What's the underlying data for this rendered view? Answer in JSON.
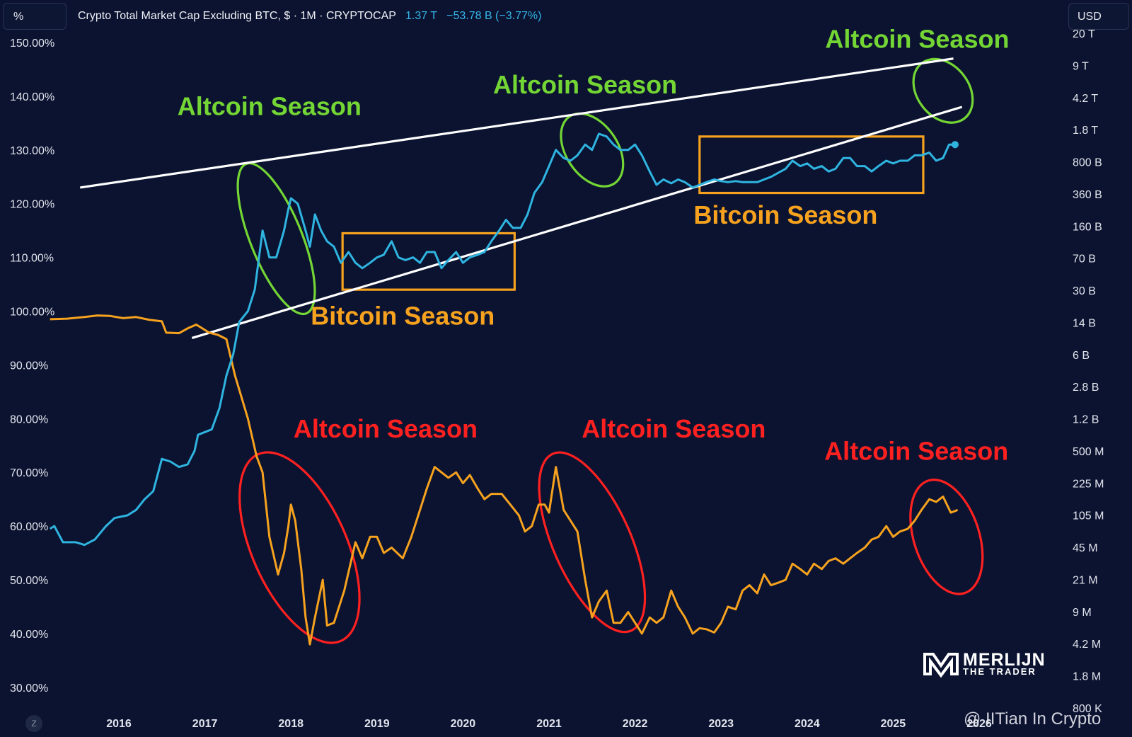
{
  "header": {
    "left_unit": "%",
    "title": "Crypto Total Market Cap Excluding BTC, $ · 1M · CRYPTOCAP",
    "stat_value": "1.37 T",
    "stat_change": "−53.78 B (−3.77%)",
    "right_currency": "USD"
  },
  "colors": {
    "background": "#0b1331",
    "total2_line": "#2fb4e0",
    "dominance_line": "#f6a21e",
    "altcoin_green": "#74d634",
    "altcoin_red": "#ff2020",
    "bitcoin_orange": "#f6a21e",
    "trendline": "#ffffff"
  },
  "icons": {
    "chart_logo": "tradingview-logo-icon",
    "brand": "merlijn-logo-icon"
  },
  "logo": {
    "line1": "MERLIJN",
    "line2": "THE TRADER"
  },
  "watermark": "@ IITian In Crypto",
  "z_badge": "Z",
  "chart_data": {
    "type": "line",
    "title": "Crypto Total Market Cap Excluding BTC, $ · 1M · CRYPTOCAP",
    "xlabel": "",
    "ylabel": "",
    "x_ticks": [
      "2016",
      "2017",
      "2018",
      "2019",
      "2020",
      "2021",
      "2022",
      "2023",
      "2024",
      "2025",
      "2026"
    ],
    "left_axis": {
      "unit": "%",
      "ticks": [
        "150.00%",
        "140.00%",
        "130.00%",
        "120.00%",
        "110.00%",
        "100.00%",
        "90.00%",
        "80.00%",
        "70.00%",
        "60.00%",
        "50.00%",
        "40.00%",
        "30.00%"
      ],
      "ylim": [
        27,
        152
      ]
    },
    "right_axis": {
      "unit": "USD",
      "scale": "log",
      "ticks": [
        "20 T",
        "9 T",
        "4.2 T",
        "1.8 T",
        "800 B",
        "360 B",
        "160 B",
        "70 B",
        "30 B",
        "14 B",
        "6 B",
        "2.8 B",
        "1.2 B",
        "500 M",
        "225 M",
        "105 M",
        "45 M",
        "21 M",
        "9 M",
        "4.2 M",
        "1.8 M",
        "800 K"
      ]
    },
    "grid": false,
    "series": [
      {
        "axis": "left",
        "points": [
          [
            2015.2,
            98.5
          ],
          [
            2015.4,
            98.6
          ],
          [
            2015.6,
            98.9
          ],
          [
            2015.75,
            99.2
          ],
          [
            2015.9,
            99.1
          ],
          [
            2016.05,
            98.7
          ],
          [
            2016.2,
            98.9
          ],
          [
            2016.35,
            98.4
          ],
          [
            2016.5,
            98.1
          ],
          [
            2016.55,
            96
          ],
          [
            2016.7,
            95.9
          ],
          [
            2016.8,
            96.8
          ],
          [
            2016.9,
            97.5
          ],
          [
            2017.05,
            96
          ],
          [
            2017.15,
            95.6
          ],
          [
            2017.25,
            94.8
          ],
          [
            2017.35,
            88
          ],
          [
            2017.5,
            80
          ],
          [
            2017.6,
            73
          ],
          [
            2017.67,
            70
          ],
          [
            2017.75,
            58
          ],
          [
            2017.85,
            51
          ],
          [
            2017.92,
            55
          ],
          [
            2017.97,
            60
          ],
          [
            2018.0,
            64
          ],
          [
            2018.05,
            61
          ],
          [
            2018.12,
            52
          ],
          [
            2018.17,
            43
          ],
          [
            2018.22,
            38
          ],
          [
            2018.28,
            43
          ],
          [
            2018.37,
            50
          ],
          [
            2018.42,
            41.5
          ],
          [
            2018.5,
            42
          ],
          [
            2018.62,
            48
          ],
          [
            2018.75,
            57
          ],
          [
            2018.83,
            54
          ],
          [
            2018.92,
            58
          ],
          [
            2019.0,
            58
          ],
          [
            2019.08,
            55
          ],
          [
            2019.17,
            56
          ],
          [
            2019.3,
            54
          ],
          [
            2019.4,
            58
          ],
          [
            2019.5,
            63
          ],
          [
            2019.58,
            67
          ],
          [
            2019.67,
            71
          ],
          [
            2019.75,
            70
          ],
          [
            2019.83,
            69
          ],
          [
            2019.92,
            70
          ],
          [
            2020.0,
            68
          ],
          [
            2020.08,
            69.5
          ],
          [
            2020.17,
            67
          ],
          [
            2020.25,
            65
          ],
          [
            2020.33,
            66
          ],
          [
            2020.45,
            66
          ],
          [
            2020.55,
            64
          ],
          [
            2020.65,
            62
          ],
          [
            2020.72,
            59
          ],
          [
            2020.8,
            60
          ],
          [
            2020.88,
            64
          ],
          [
            2020.95,
            64
          ],
          [
            2021.0,
            62.5
          ],
          [
            2021.08,
            71
          ],
          [
            2021.17,
            63
          ],
          [
            2021.25,
            61
          ],
          [
            2021.33,
            59
          ],
          [
            2021.42,
            50
          ],
          [
            2021.5,
            43
          ],
          [
            2021.58,
            46
          ],
          [
            2021.67,
            48
          ],
          [
            2021.75,
            42
          ],
          [
            2021.83,
            42
          ],
          [
            2021.92,
            44
          ],
          [
            2022.0,
            42
          ],
          [
            2022.08,
            40
          ],
          [
            2022.17,
            43
          ],
          [
            2022.25,
            42
          ],
          [
            2022.33,
            43
          ],
          [
            2022.42,
            48
          ],
          [
            2022.5,
            45
          ],
          [
            2022.58,
            43
          ],
          [
            2022.67,
            40
          ],
          [
            2022.75,
            41
          ],
          [
            2022.83,
            40.8
          ],
          [
            2022.92,
            40.2
          ],
          [
            2023.0,
            42
          ],
          [
            2023.08,
            45
          ],
          [
            2023.17,
            44.5
          ],
          [
            2023.25,
            48
          ],
          [
            2023.33,
            49
          ],
          [
            2023.42,
            47.5
          ],
          [
            2023.5,
            51
          ],
          [
            2023.58,
            49
          ],
          [
            2023.67,
            49.5
          ],
          [
            2023.75,
            50
          ],
          [
            2023.83,
            53
          ],
          [
            2023.92,
            52
          ],
          [
            2024.0,
            51
          ],
          [
            2024.08,
            53
          ],
          [
            2024.17,
            52
          ],
          [
            2024.25,
            53.5
          ],
          [
            2024.33,
            54
          ],
          [
            2024.42,
            53
          ],
          [
            2024.5,
            54
          ],
          [
            2024.58,
            55
          ],
          [
            2024.67,
            56
          ],
          [
            2024.75,
            57.5
          ],
          [
            2024.83,
            58
          ],
          [
            2024.92,
            60
          ],
          [
            2025.0,
            58
          ],
          [
            2025.08,
            59
          ],
          [
            2025.17,
            59.5
          ],
          [
            2025.25,
            61
          ],
          [
            2025.33,
            63
          ],
          [
            2025.42,
            65
          ],
          [
            2025.5,
            64.5
          ],
          [
            2025.58,
            65.5
          ],
          [
            2025.67,
            62.5
          ],
          [
            2025.75,
            63
          ]
        ]
      },
      {
        "axis": "left",
        "points": [
          [
            2015.2,
            59.5
          ],
          [
            2015.25,
            60
          ],
          [
            2015.35,
            57
          ],
          [
            2015.5,
            57
          ],
          [
            2015.6,
            56.5
          ],
          [
            2015.72,
            57.5
          ],
          [
            2015.85,
            60
          ],
          [
            2015.95,
            61.5
          ],
          [
            2016.1,
            62
          ],
          [
            2016.2,
            63
          ],
          [
            2016.3,
            65
          ],
          [
            2016.4,
            66.5
          ],
          [
            2016.5,
            72.5
          ],
          [
            2016.6,
            72
          ],
          [
            2016.7,
            71
          ],
          [
            2016.8,
            71.5
          ],
          [
            2016.88,
            74
          ],
          [
            2016.92,
            77
          ],
          [
            2017.0,
            77.5
          ],
          [
            2017.08,
            78
          ],
          [
            2017.17,
            82
          ],
          [
            2017.25,
            88
          ],
          [
            2017.33,
            92
          ],
          [
            2017.4,
            98
          ],
          [
            2017.5,
            100
          ],
          [
            2017.58,
            104
          ],
          [
            2017.67,
            115
          ],
          [
            2017.75,
            110
          ],
          [
            2017.83,
            110
          ],
          [
            2017.92,
            115
          ],
          [
            2017.97,
            119
          ],
          [
            2018.0,
            121
          ],
          [
            2018.08,
            120
          ],
          [
            2018.17,
            115
          ],
          [
            2018.22,
            112
          ],
          [
            2018.28,
            118
          ],
          [
            2018.35,
            115
          ],
          [
            2018.42,
            113
          ],
          [
            2018.5,
            112
          ],
          [
            2018.58,
            109
          ],
          [
            2018.67,
            111
          ],
          [
            2018.75,
            109
          ],
          [
            2018.83,
            108
          ],
          [
            2018.92,
            109
          ],
          [
            2019.0,
            110
          ],
          [
            2019.08,
            110.5
          ],
          [
            2019.17,
            113
          ],
          [
            2019.25,
            110
          ],
          [
            2019.33,
            109.5
          ],
          [
            2019.42,
            110
          ],
          [
            2019.5,
            109
          ],
          [
            2019.58,
            111
          ],
          [
            2019.67,
            111
          ],
          [
            2019.75,
            108
          ],
          [
            2019.83,
            109.5
          ],
          [
            2019.92,
            111
          ],
          [
            2020.0,
            109
          ],
          [
            2020.08,
            110
          ],
          [
            2020.17,
            110.5
          ],
          [
            2020.25,
            111
          ],
          [
            2020.33,
            113
          ],
          [
            2020.42,
            115
          ],
          [
            2020.5,
            117
          ],
          [
            2020.58,
            115.5
          ],
          [
            2020.67,
            115.5
          ],
          [
            2020.75,
            118
          ],
          [
            2020.83,
            122
          ],
          [
            2020.92,
            124
          ],
          [
            2021.0,
            127
          ],
          [
            2021.08,
            130
          ],
          [
            2021.17,
            128.5
          ],
          [
            2021.25,
            128
          ],
          [
            2021.33,
            129
          ],
          [
            2021.42,
            131
          ],
          [
            2021.5,
            130
          ],
          [
            2021.58,
            133
          ],
          [
            2021.67,
            132.5
          ],
          [
            2021.75,
            131
          ],
          [
            2021.83,
            130
          ],
          [
            2021.92,
            130
          ],
          [
            2022.0,
            131
          ],
          [
            2022.08,
            129
          ],
          [
            2022.17,
            126
          ],
          [
            2022.25,
            123.5
          ],
          [
            2022.33,
            124.5
          ],
          [
            2022.42,
            123.8
          ],
          [
            2022.5,
            124.5
          ],
          [
            2022.58,
            124
          ],
          [
            2022.67,
            123
          ],
          [
            2022.75,
            123.5
          ],
          [
            2022.83,
            124
          ],
          [
            2022.92,
            124.5
          ],
          [
            2023.0,
            124.2
          ],
          [
            2023.08,
            124
          ],
          [
            2023.17,
            124.2
          ],
          [
            2023.25,
            124
          ],
          [
            2023.33,
            124
          ],
          [
            2023.42,
            124
          ],
          [
            2023.5,
            124.5
          ],
          [
            2023.58,
            125
          ],
          [
            2023.67,
            125.8
          ],
          [
            2023.75,
            126.5
          ],
          [
            2023.83,
            128
          ],
          [
            2023.92,
            127
          ],
          [
            2024.0,
            127.5
          ],
          [
            2024.08,
            126.5
          ],
          [
            2024.17,
            127
          ],
          [
            2024.25,
            126
          ],
          [
            2024.33,
            126.5
          ],
          [
            2024.42,
            128.5
          ],
          [
            2024.5,
            128.5
          ],
          [
            2024.58,
            127
          ],
          [
            2024.67,
            127
          ],
          [
            2024.75,
            126
          ],
          [
            2024.83,
            127
          ],
          [
            2024.92,
            128
          ],
          [
            2025.0,
            127.5
          ],
          [
            2025.08,
            128
          ],
          [
            2025.17,
            128
          ],
          [
            2025.25,
            129
          ],
          [
            2025.33,
            129
          ],
          [
            2025.42,
            129.5
          ],
          [
            2025.5,
            128
          ],
          [
            2025.58,
            128.5
          ],
          [
            2025.65,
            131
          ],
          [
            2025.72,
            131
          ]
        ]
      }
    ],
    "trendlines": [
      {
        "from": [
          2015.55,
          123
        ],
        "to": [
          2025.7,
          147
        ]
      },
      {
        "from": [
          2016.85,
          95
        ],
        "to": [
          2025.8,
          138
        ]
      }
    ],
    "annotations": [
      {
        "text": "Altcoin Season",
        "color": "green",
        "at": [
          2017.75,
          136.5
        ]
      },
      {
        "text": "Altcoin Season",
        "color": "green",
        "at": [
          2021.42,
          140.5
        ]
      },
      {
        "text": "Altcoin Season",
        "color": "green",
        "at": [
          2025.28,
          149
        ]
      },
      {
        "text": "Bitcoin Season",
        "color": "orange",
        "at": [
          2019.3,
          97.5
        ]
      },
      {
        "text": "Bitcoin Season",
        "color": "orange",
        "at": [
          2023.75,
          116.3
        ]
      },
      {
        "text": "Altcoin Season",
        "color": "red",
        "at": [
          2019.1,
          76.5
        ]
      },
      {
        "text": "Altcoin Season",
        "color": "red",
        "at": [
          2022.45,
          76.5
        ]
      },
      {
        "text": "Altcoin Season",
        "color": "red",
        "at": [
          2025.27,
          72.3
        ]
      }
    ],
    "highlight_ellipses": [
      {
        "color": "green",
        "center": [
          2017.83,
          113.5
        ],
        "radii_years_pct": [
          0.3,
          15
        ]
      },
      {
        "color": "green",
        "center": [
          2021.5,
          130
        ],
        "radii_years_pct": [
          0.3,
          7.5
        ]
      },
      {
        "color": "green",
        "center": [
          2025.58,
          141
        ],
        "radii_years_pct": [
          0.3,
          6.5
        ]
      },
      {
        "color": "red",
        "center": [
          2018.1,
          56
        ],
        "radii_years_pct": [
          0.55,
          19
        ]
      },
      {
        "color": "red",
        "center": [
          2021.5,
          57
        ],
        "radii_years_pct": [
          0.45,
          18
        ]
      },
      {
        "color": "red",
        "center": [
          2025.62,
          58
        ],
        "radii_years_pct": [
          0.38,
          11
        ]
      }
    ],
    "highlight_boxes": [
      {
        "color": "orange",
        "x_range": [
          2018.6,
          2020.6
        ],
        "y_range": [
          104,
          114.5
        ]
      },
      {
        "color": "orange",
        "x_range": [
          2022.75,
          2025.35
        ],
        "y_range": [
          122,
          132.5
        ]
      }
    ]
  }
}
